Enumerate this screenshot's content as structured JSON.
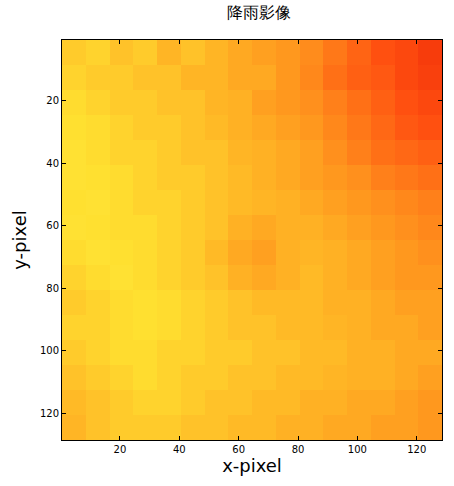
{
  "chart_data": {
    "type": "heatmap",
    "title": "降雨影像",
    "x_label": "x-pixel",
    "y_label": "y-pixel",
    "xlim": [
      0.5,
      128.5
    ],
    "ylim": [
      128.5,
      0.5
    ],
    "xticks": [
      20,
      40,
      60,
      80,
      100,
      120
    ],
    "yticks": [
      20,
      40,
      60,
      80,
      100,
      120
    ],
    "x": [
      4.5,
      12.5,
      20.5,
      28.5,
      36.5,
      44.5,
      52.5,
      60.5,
      68.5,
      76.5,
      84.5,
      92.5,
      100.5,
      108.5,
      116.5,
      124.5
    ],
    "y": [
      4.5,
      12.5,
      20.5,
      28.5,
      36.5,
      44.5,
      52.5,
      60.5,
      68.5,
      76.5,
      84.5,
      92.5,
      100.5,
      108.5,
      116.5,
      124.5
    ],
    "zlim": [
      0,
      1
    ],
    "cells": [
      [
        0.5,
        0.48,
        0.52,
        0.5,
        0.55,
        0.52,
        0.55,
        0.58,
        0.6,
        0.62,
        0.65,
        0.7,
        0.75,
        0.8,
        0.82,
        0.85
      ],
      [
        0.48,
        0.5,
        0.5,
        0.52,
        0.52,
        0.55,
        0.55,
        0.58,
        0.58,
        0.62,
        0.66,
        0.72,
        0.76,
        0.78,
        0.82,
        0.84
      ],
      [
        0.46,
        0.48,
        0.5,
        0.5,
        0.52,
        0.52,
        0.55,
        0.56,
        0.6,
        0.62,
        0.64,
        0.68,
        0.72,
        0.76,
        0.8,
        0.82
      ],
      [
        0.45,
        0.46,
        0.48,
        0.5,
        0.5,
        0.52,
        0.54,
        0.56,
        0.58,
        0.6,
        0.62,
        0.66,
        0.7,
        0.74,
        0.78,
        0.8
      ],
      [
        0.44,
        0.46,
        0.48,
        0.48,
        0.5,
        0.52,
        0.52,
        0.55,
        0.56,
        0.58,
        0.6,
        0.64,
        0.68,
        0.72,
        0.74,
        0.76
      ],
      [
        0.44,
        0.45,
        0.46,
        0.48,
        0.5,
        0.5,
        0.52,
        0.54,
        0.56,
        0.58,
        0.6,
        0.62,
        0.64,
        0.68,
        0.7,
        0.72
      ],
      [
        0.45,
        0.44,
        0.46,
        0.48,
        0.48,
        0.5,
        0.52,
        0.54,
        0.55,
        0.56,
        0.58,
        0.6,
        0.62,
        0.64,
        0.66,
        0.68
      ],
      [
        0.44,
        0.45,
        0.46,
        0.46,
        0.48,
        0.5,
        0.52,
        0.56,
        0.58,
        0.56,
        0.56,
        0.58,
        0.6,
        0.62,
        0.64,
        0.66
      ],
      [
        0.46,
        0.44,
        0.45,
        0.46,
        0.48,
        0.5,
        0.54,
        0.58,
        0.6,
        0.56,
        0.55,
        0.56,
        0.58,
        0.6,
        0.62,
        0.64
      ],
      [
        0.48,
        0.46,
        0.44,
        0.46,
        0.48,
        0.5,
        0.52,
        0.56,
        0.58,
        0.56,
        0.54,
        0.56,
        0.58,
        0.6,
        0.62,
        0.62
      ],
      [
        0.5,
        0.48,
        0.46,
        0.45,
        0.46,
        0.48,
        0.5,
        0.52,
        0.54,
        0.54,
        0.54,
        0.56,
        0.56,
        0.58,
        0.6,
        0.6
      ],
      [
        0.48,
        0.48,
        0.46,
        0.45,
        0.46,
        0.48,
        0.5,
        0.52,
        0.52,
        0.54,
        0.54,
        0.55,
        0.56,
        0.58,
        0.58,
        0.6
      ],
      [
        0.5,
        0.48,
        0.46,
        0.46,
        0.48,
        0.48,
        0.5,
        0.5,
        0.52,
        0.52,
        0.54,
        0.54,
        0.56,
        0.56,
        0.58,
        0.58
      ],
      [
        0.52,
        0.5,
        0.48,
        0.46,
        0.48,
        0.5,
        0.5,
        0.52,
        0.52,
        0.54,
        0.54,
        0.55,
        0.56,
        0.56,
        0.58,
        0.6
      ],
      [
        0.54,
        0.52,
        0.5,
        0.48,
        0.48,
        0.5,
        0.52,
        0.52,
        0.54,
        0.54,
        0.56,
        0.56,
        0.58,
        0.58,
        0.6,
        0.62
      ],
      [
        0.55,
        0.52,
        0.5,
        0.5,
        0.5,
        0.52,
        0.52,
        0.54,
        0.54,
        0.56,
        0.56,
        0.58,
        0.58,
        0.6,
        0.6,
        0.62
      ]
    ]
  }
}
